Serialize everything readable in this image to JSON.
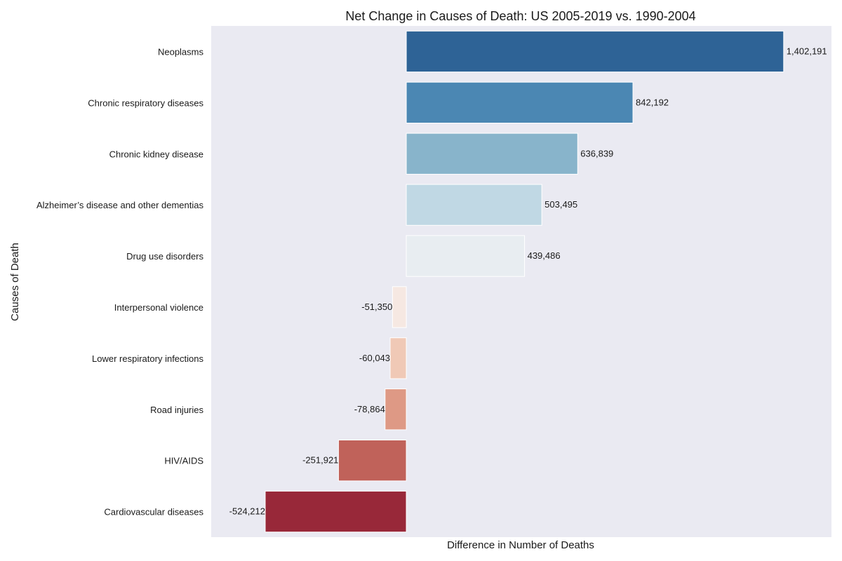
{
  "chart_data": {
    "type": "bar",
    "orientation": "horizontal",
    "title": "Net Change in Causes of Death: US 2005-2019 vs. 1990-2004",
    "xlabel": "Difference in Number of Deaths",
    "ylabel": "Causes of Death",
    "grid": false,
    "xlim": [
      -725000,
      1580000
    ],
    "categories": [
      "Neoplasms",
      "Chronic respiratory diseases",
      "Chronic kidney disease",
      "Alzheimer’s disease and other dementias",
      "Drug use disorders",
      "Interpersonal violence",
      "Lower respiratory infections",
      "Road injuries",
      "HIV/AIDS",
      "Cardiovascular diseases"
    ],
    "values": [
      1402191,
      842192,
      636839,
      503495,
      439486,
      -51350,
      -60043,
      -78864,
      -251921,
      -524212
    ],
    "value_labels": [
      "1,402,191",
      "842,192",
      "636,839",
      "503,495",
      "439,486",
      "-51,350",
      "-60,043",
      "-78,864",
      "-251,921",
      "-524,212"
    ],
    "colors": [
      "#2e6396",
      "#4b87b3",
      "#88b4cb",
      "#c0d8e4",
      "#e8edf1",
      "#f6e8e2",
      "#f0c9b6",
      "#de9985",
      "#c0625a",
      "#982839"
    ]
  },
  "style": {
    "plot_background": "#eaeaf2",
    "bar_edge": "#ffffff"
  }
}
